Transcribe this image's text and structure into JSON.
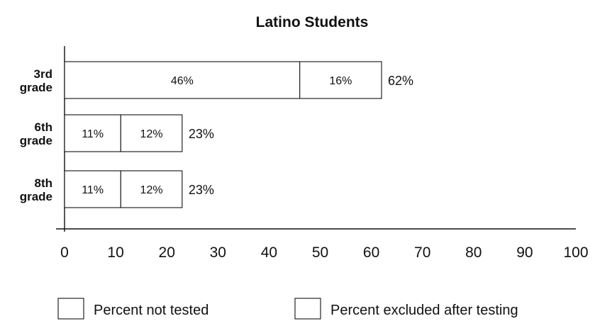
{
  "chart_data": {
    "type": "bar",
    "orientation": "horizontal",
    "stacked": true,
    "title": "Latino Students",
    "categories": [
      "3rd\ngrade",
      "6th\ngrade",
      "8th\ngrade"
    ],
    "series": [
      {
        "name": "Percent not tested",
        "values": [
          46,
          11,
          11
        ],
        "labels": [
          "46%",
          "11%",
          "11%"
        ]
      },
      {
        "name": "Percent excluded after testing",
        "values": [
          16,
          12,
          12
        ],
        "labels": [
          "16%",
          "12%",
          "12%"
        ]
      }
    ],
    "totals": [
      "62%",
      "23%",
      "23%"
    ],
    "xlim": [
      0,
      100
    ],
    "xticks": [
      0,
      10,
      20,
      30,
      40,
      50,
      60,
      70,
      80,
      90,
      100
    ],
    "grid": false,
    "legend_position": "bottom"
  }
}
